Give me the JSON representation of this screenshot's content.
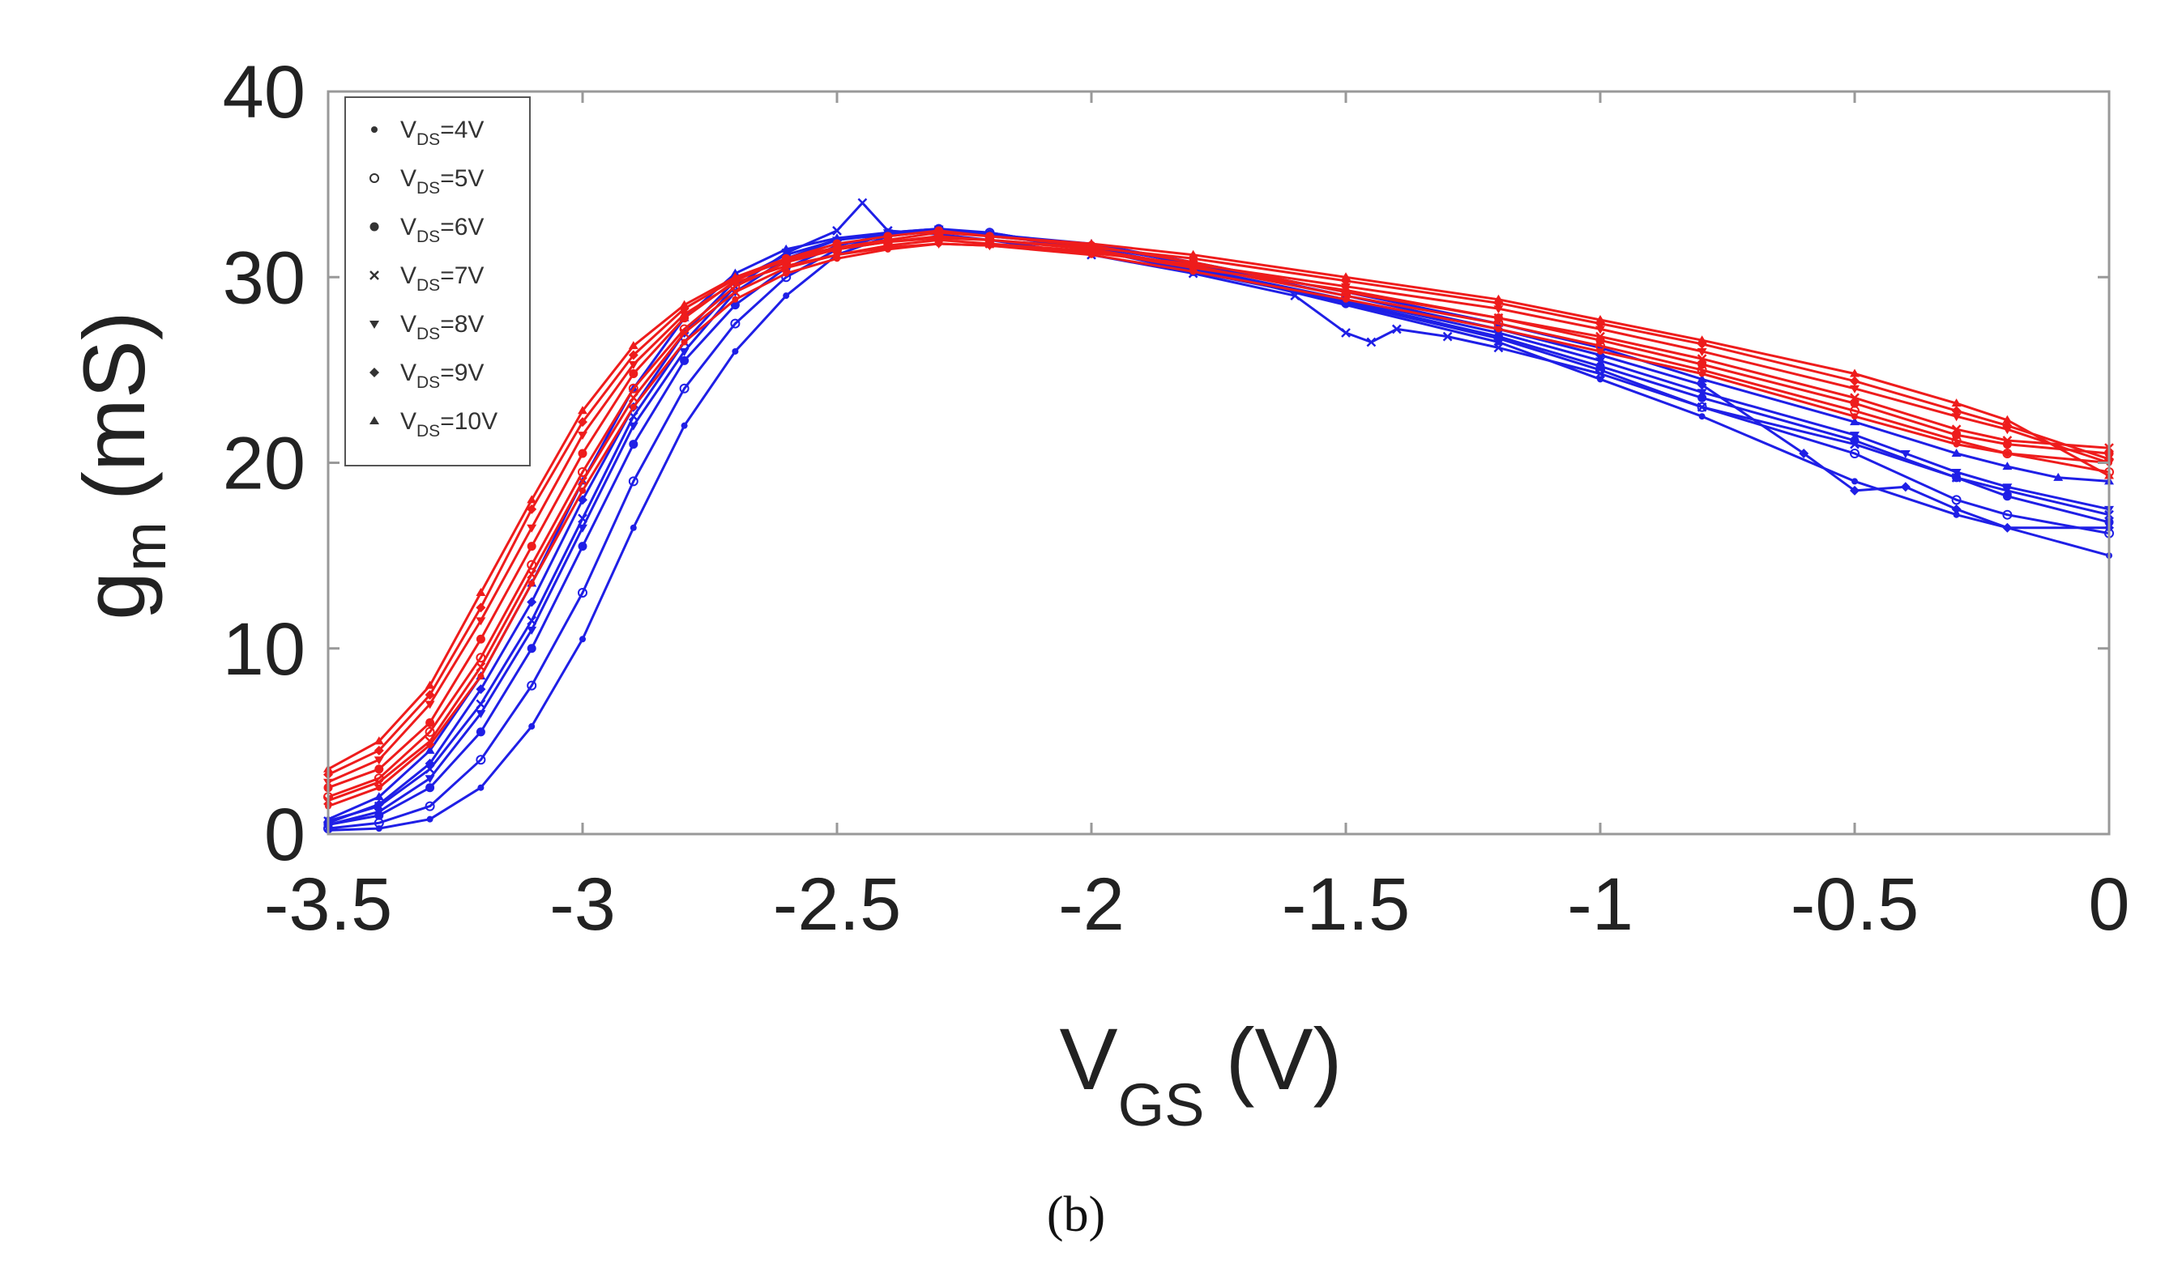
{
  "chart_data": {
    "type": "line",
    "xlabel_main": "V",
    "xlabel_sub": "GS",
    "xlabel_unit": "(V)",
    "ylabel_main": "g",
    "ylabel_sub": "m",
    "ylabel_unit": "(mS)",
    "xlim": [
      -3.5,
      0
    ],
    "ylim": [
      0,
      40
    ],
    "xticks": [
      -3.5,
      -3,
      -2.5,
      -2,
      -1.5,
      -1,
      -0.5,
      0
    ],
    "xtick_labels": [
      "-3.5",
      "-3",
      "-2.5",
      "-2",
      "-1.5",
      "-1",
      "-0.5",
      "0"
    ],
    "yticks": [
      0,
      10,
      20,
      30,
      40
    ],
    "ytick_labels": [
      "0",
      "10",
      "20",
      "30",
      "40"
    ],
    "grid": false,
    "legend_position": "top-left",
    "legend": [
      {
        "prefix": "V",
        "sub": "DS",
        "suffix": "=4V",
        "marker": "dot"
      },
      {
        "prefix": "V",
        "sub": "DS",
        "suffix": "=5V",
        "marker": "circle"
      },
      {
        "prefix": "V",
        "sub": "DS",
        "suffix": "=6V",
        "marker": "filled-circle"
      },
      {
        "prefix": "V",
        "sub": "DS",
        "suffix": "=7V",
        "marker": "x"
      },
      {
        "prefix": "V",
        "sub": "DS",
        "suffix": "=8V",
        "marker": "triangle-down"
      },
      {
        "prefix": "V",
        "sub": "DS",
        "suffix": "=9V",
        "marker": "diamond"
      },
      {
        "prefix": "V",
        "sub": "DS",
        "suffix": "=10V",
        "marker": "triangle-up"
      }
    ],
    "colors": {
      "blue": "#1f1fe6",
      "red": "#ee1c1c"
    },
    "series": [
      {
        "name": "VDS=4V",
        "group": "blue",
        "x": [
          -3.5,
          -3.4,
          -3.3,
          -3.2,
          -3.1,
          -3.0,
          -2.9,
          -2.8,
          -2.7,
          -2.6,
          -2.5,
          -2.4,
          -2.3,
          -2.2,
          -2.0,
          -1.8,
          -1.5,
          -1.2,
          -1.0,
          -0.8,
          -0.5,
          -0.3,
          -0.2,
          0
        ],
        "y": [
          0.2,
          0.3,
          0.8,
          2.5,
          5.8,
          10.5,
          16.5,
          22,
          26,
          29,
          31.2,
          32.2,
          32.5,
          32.4,
          31.5,
          30.5,
          28.5,
          26.5,
          24.5,
          22.5,
          19,
          17.2,
          16.5,
          15
        ]
      },
      {
        "name": "VDS=5V",
        "group": "blue",
        "x": [
          -3.5,
          -3.4,
          -3.3,
          -3.2,
          -3.1,
          -3.0,
          -2.9,
          -2.8,
          -2.7,
          -2.6,
          -2.5,
          -2.4,
          -2.3,
          -2.2,
          -2.0,
          -1.8,
          -1.5,
          -1.2,
          -1.0,
          -0.8,
          -0.5,
          -0.3,
          -0.2,
          0
        ],
        "y": [
          0.3,
          0.6,
          1.5,
          4,
          8,
          13,
          19,
          24,
          27.5,
          30,
          31.5,
          32.3,
          32.6,
          32.4,
          31.5,
          30.4,
          28.6,
          26.7,
          25,
          23,
          20.5,
          18,
          17.2,
          16.2
        ]
      },
      {
        "name": "VDS=6V",
        "group": "blue",
        "x": [
          -3.5,
          -3.4,
          -3.3,
          -3.2,
          -3.1,
          -3.0,
          -2.9,
          -2.8,
          -2.7,
          -2.6,
          -2.5,
          -2.4,
          -2.3,
          -2.2,
          -2.0,
          -1.8,
          -1.5,
          -1.2,
          -1.0,
          -0.8,
          -0.5,
          -0.3,
          -0.2,
          0
        ],
        "y": [
          0.5,
          1,
          2.5,
          5.5,
          10,
          15.5,
          21,
          25.5,
          28.5,
          30.5,
          31.7,
          32.3,
          32.5,
          32.3,
          31.5,
          30.3,
          28.7,
          26.8,
          25.2,
          23.5,
          21.2,
          19.2,
          18.2,
          16.8
        ]
      },
      {
        "name": "VDS=7V",
        "group": "blue",
        "x": [
          -3.5,
          -3.4,
          -3.3,
          -3.2,
          -3.1,
          -3.0,
          -2.9,
          -2.8,
          -2.7,
          -2.6,
          -2.5,
          -2.45,
          -2.4,
          -2.3,
          -2.2,
          -2.0,
          -1.8,
          -1.6,
          -1.5,
          -1.45,
          -1.4,
          -1.3,
          -1.2,
          -1.0,
          -0.8,
          -0.5,
          -0.3,
          -0.2,
          0
        ],
        "y": [
          0.7,
          1.5,
          3.5,
          7,
          11.5,
          17,
          22.5,
          26.5,
          29.5,
          31.3,
          32.5,
          34,
          32.5,
          32.3,
          32,
          31.2,
          30.2,
          29,
          27,
          26.5,
          27.2,
          26.8,
          26.2,
          24.8,
          23,
          21,
          19.2,
          18.5,
          17.2
        ]
      },
      {
        "name": "VDS=8V",
        "group": "blue",
        "x": [
          -3.5,
          -3.4,
          -3.3,
          -3.2,
          -3.1,
          -3.0,
          -2.9,
          -2.8,
          -2.7,
          -2.6,
          -2.5,
          -2.4,
          -2.3,
          -2.2,
          -2.0,
          -1.8,
          -1.5,
          -1.2,
          -1.0,
          -0.8,
          -0.5,
          -0.4,
          -0.3,
          -0.2,
          0
        ],
        "y": [
          0.5,
          1.2,
          3,
          6.5,
          11,
          16.5,
          22,
          26,
          29.2,
          31,
          32,
          32.4,
          32.6,
          32.3,
          31.6,
          30.5,
          28.8,
          27,
          25.5,
          23.8,
          21.5,
          20.5,
          19.5,
          18.7,
          17.5
        ]
      },
      {
        "name": "VDS=9V",
        "group": "blue",
        "x": [
          -3.5,
          -3.4,
          -3.3,
          -3.2,
          -3.1,
          -3.0,
          -2.9,
          -2.8,
          -2.7,
          -2.6,
          -2.5,
          -2.4,
          -2.3,
          -2.2,
          -2.0,
          -1.8,
          -1.5,
          -1.2,
          -1.0,
          -0.8,
          -0.6,
          -0.5,
          -0.4,
          -0.3,
          -0.2,
          0
        ],
        "y": [
          0.6,
          1.6,
          3.8,
          7.8,
          12.5,
          18,
          23,
          27,
          29.8,
          31.2,
          32,
          32.3,
          32.5,
          32.2,
          31.7,
          30.7,
          29,
          27.2,
          25.8,
          24.2,
          20.5,
          18.5,
          18.7,
          17.5,
          16.5,
          16.5
        ]
      },
      {
        "name": "VDS=10V",
        "group": "blue",
        "x": [
          -3.5,
          -3.4,
          -3.3,
          -3.2,
          -3.1,
          -3.0,
          -2.9,
          -2.8,
          -2.7,
          -2.6,
          -2.5,
          -2.4,
          -2.3,
          -2.2,
          -2.0,
          -1.8,
          -1.5,
          -1.2,
          -1.0,
          -0.8,
          -0.5,
          -0.3,
          -0.2,
          -0.1,
          0
        ],
        "y": [
          0.8,
          2,
          4.5,
          8.5,
          13.5,
          19,
          24,
          27.8,
          30.2,
          31.5,
          32.1,
          32.4,
          32.6,
          32.3,
          31.8,
          30.8,
          29.2,
          27.5,
          26.2,
          24.5,
          22.2,
          20.5,
          19.8,
          19.2,
          19
        ]
      },
      {
        "name": "VDS=4V",
        "group": "red",
        "x": [
          -3.5,
          -3.4,
          -3.3,
          -3.2,
          -3.1,
          -3.0,
          -2.9,
          -2.8,
          -2.7,
          -2.6,
          -2.5,
          -2.4,
          -2.3,
          -2.2,
          -2.0,
          -1.8,
          -1.5,
          -1.2,
          -1.0,
          -0.8,
          -0.5,
          -0.3,
          -0.2,
          0
        ],
        "y": [
          1.5,
          2.5,
          4.8,
          8.5,
          13.5,
          18.5,
          23,
          26.5,
          28.8,
          30.2,
          31,
          31.5,
          31.8,
          31.7,
          31.2,
          30.3,
          28.8,
          27.2,
          26,
          24.8,
          22.5,
          21,
          20.5,
          20
        ]
      },
      {
        "name": "VDS=5V",
        "group": "red",
        "x": [
          -3.5,
          -3.4,
          -3.3,
          -3.2,
          -3.1,
          -3.0,
          -2.9,
          -2.8,
          -2.7,
          -2.6,
          -2.5,
          -2.4,
          -2.3,
          -2.2,
          -2.0,
          -1.8,
          -1.5,
          -1.2,
          -1.0,
          -0.8,
          -0.5,
          -0.3,
          -0.2,
          0
        ],
        "y": [
          2,
          3,
          5.5,
          9.5,
          14.5,
          19.5,
          24,
          27.2,
          29.5,
          30.8,
          31.5,
          31.9,
          32.2,
          32,
          31.5,
          30.6,
          29,
          27.5,
          26.3,
          25,
          22.8,
          21.2,
          20.5,
          19.5
        ]
      },
      {
        "name": "VDS=6V",
        "group": "red",
        "x": [
          -3.5,
          -3.4,
          -3.3,
          -3.2,
          -3.1,
          -3.0,
          -2.9,
          -2.8,
          -2.7,
          -2.6,
          -2.5,
          -2.4,
          -2.3,
          -2.2,
          -2.0,
          -1.8,
          -1.5,
          -1.2,
          -1.0,
          -0.8,
          -0.5,
          -0.3,
          -0.2,
          0
        ],
        "y": [
          2.5,
          3.5,
          6,
          10.5,
          15.5,
          20.5,
          24.8,
          27.8,
          29.8,
          31,
          31.8,
          32.2,
          32.5,
          32.2,
          31.7,
          30.8,
          29.2,
          27.8,
          26.6,
          25.3,
          23.2,
          21.5,
          21,
          20.5
        ]
      },
      {
        "name": "VDS=7V",
        "group": "red",
        "x": [
          -3.5,
          -3.4,
          -3.3,
          -3.2,
          -3.1,
          -3.0,
          -2.9,
          -2.8,
          -2.7,
          -2.6,
          -2.5,
          -2.4,
          -2.3,
          -2.2,
          -2.0,
          -1.8,
          -1.5,
          -1.2,
          -1.0,
          -0.8,
          -0.5,
          -0.3,
          -0.2,
          0
        ],
        "y": [
          1.8,
          2.8,
          5,
          9,
          14,
          19,
          23.5,
          27,
          29.2,
          30.5,
          31.2,
          31.7,
          32,
          31.8,
          31.4,
          30.5,
          29.3,
          27.8,
          26.8,
          25.6,
          23.5,
          21.8,
          21.2,
          20.8
        ]
      },
      {
        "name": "VDS=8V",
        "group": "red",
        "x": [
          -3.5,
          -3.4,
          -3.3,
          -3.2,
          -3.1,
          -3.0,
          -2.9,
          -2.8,
          -2.7,
          -2.6,
          -2.5,
          -2.4,
          -2.3,
          -2.2,
          -2.0,
          -1.8,
          -1.5,
          -1.2,
          -1.0,
          -0.8,
          -0.5,
          -0.3,
          -0.2,
          0
        ],
        "y": [
          2.8,
          4,
          7,
          11.5,
          16.5,
          21.5,
          25.3,
          28,
          29.7,
          30.6,
          31.2,
          31.6,
          31.8,
          31.7,
          31.3,
          30.7,
          29.5,
          28.3,
          27.2,
          26,
          24,
          22.5,
          21.8,
          20
        ]
      },
      {
        "name": "VDS=9V",
        "group": "red",
        "x": [
          -3.5,
          -3.4,
          -3.3,
          -3.2,
          -3.1,
          -3.0,
          -2.9,
          -2.8,
          -2.7,
          -2.6,
          -2.5,
          -2.4,
          -2.3,
          -2.2,
          -2.0,
          -1.8,
          -1.5,
          -1.2,
          -1.0,
          -0.8,
          -0.5,
          -0.3,
          -0.2,
          0
        ],
        "y": [
          3.2,
          4.5,
          7.5,
          12.2,
          17.5,
          22.2,
          25.8,
          28.3,
          29.9,
          30.9,
          31.5,
          31.9,
          32.1,
          32,
          31.6,
          31,
          29.8,
          28.6,
          27.5,
          26.4,
          24.4,
          22.8,
          22,
          20.2
        ]
      },
      {
        "name": "VDS=10V",
        "group": "red",
        "x": [
          -3.5,
          -3.4,
          -3.3,
          -3.2,
          -3.1,
          -3.0,
          -2.9,
          -2.8,
          -2.7,
          -2.6,
          -2.5,
          -2.4,
          -2.3,
          -2.2,
          -2.0,
          -1.8,
          -1.5,
          -1.2,
          -1.0,
          -0.8,
          -0.5,
          -0.3,
          -0.2,
          0
        ],
        "y": [
          3.5,
          5,
          8,
          13,
          18,
          22.8,
          26.3,
          28.5,
          30,
          31,
          31.6,
          32,
          32.4,
          32.2,
          31.8,
          31.2,
          30,
          28.8,
          27.7,
          26.6,
          24.8,
          23.2,
          22.3,
          19.3
        ]
      }
    ],
    "panel_label": "(b)"
  }
}
